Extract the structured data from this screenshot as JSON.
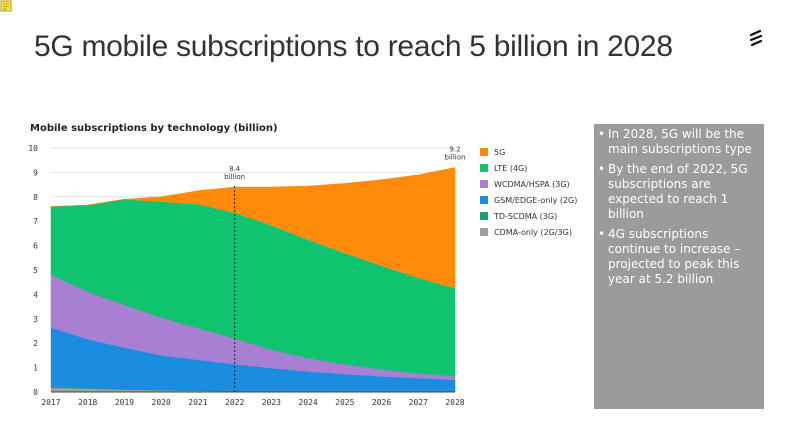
{
  "slide": {
    "title": "5G mobile subscriptions to reach 5 billion in 2028",
    "logo_icon": "ericsson-logo-icon",
    "note_icon": "note-icon"
  },
  "chart_data": {
    "type": "area",
    "title": "Mobile subscriptions by technology (billion)",
    "x": [
      "2017",
      "2018",
      "2019",
      "2020",
      "2021",
      "2022",
      "2023",
      "2024",
      "2025",
      "2026",
      "2027",
      "2028"
    ],
    "ylim": [
      0,
      10
    ],
    "yticks": [
      0,
      1,
      2,
      3,
      4,
      5,
      6,
      7,
      8,
      9,
      10
    ],
    "series": [
      {
        "name": "CDMA-only (2G/3G)",
        "color": "#a0a0a0",
        "values": [
          0.18,
          0.14,
          0.1,
          0.07,
          0.05,
          0.03,
          0.02,
          0.01,
          0.01,
          0.01,
          0.01,
          0.01
        ]
      },
      {
        "name": "TD-SCDMA (3G)",
        "color": "#19a16b",
        "values": [
          0.02,
          0.02,
          0.02,
          0.01,
          0.01,
          0.01,
          0.01,
          0.01,
          0.01,
          0.01,
          0.01,
          0.01
        ]
      },
      {
        "name": "GSM/EDGE-only (2G)",
        "color": "#1a8de0",
        "values": [
          2.45,
          2.0,
          1.7,
          1.42,
          1.26,
          1.1,
          0.95,
          0.82,
          0.72,
          0.62,
          0.55,
          0.48
        ]
      },
      {
        "name": "WCDMA/HSPA (3G)",
        "color": "#a77fd3",
        "values": [
          2.15,
          1.95,
          1.75,
          1.55,
          1.3,
          1.05,
          0.75,
          0.55,
          0.4,
          0.28,
          0.2,
          0.15
        ]
      },
      {
        "name": "LTE (4G)",
        "color": "#10c46f",
        "values": [
          2.8,
          3.55,
          4.33,
          4.75,
          5.08,
          5.15,
          5.1,
          4.85,
          4.55,
          4.25,
          3.9,
          3.6
        ]
      },
      {
        "name": "5G",
        "color": "#ff8a0c",
        "values": [
          0,
          0,
          0,
          0.2,
          0.55,
          1.06,
          1.57,
          2.2,
          2.86,
          3.53,
          4.23,
          4.95
        ]
      }
    ],
    "annotations": [
      {
        "x": "2022",
        "value": "8.4",
        "unit": "billion"
      },
      {
        "x": "2028",
        "value": "9.2",
        "unit": "billion"
      }
    ],
    "legend": {
      "placement": "right",
      "items": [
        {
          "label": "5G",
          "color": "#ff8a0c"
        },
        {
          "label": "LTE (4G)",
          "color": "#10c46f"
        },
        {
          "label": "WCDMA/HSPA (3G)",
          "color": "#a77fd3"
        },
        {
          "label": "GSM/EDGE-only (2G)",
          "color": "#1a8de0"
        },
        {
          "label": "TD-SCDMA (3G)",
          "color": "#19a16b"
        },
        {
          "label": "CDMA-only (2G/3G)",
          "color": "#a0a0a0"
        }
      ]
    },
    "grid": true
  },
  "bullets": [
    {
      "symbol": "•",
      "text": "In 2028, 5G will be the main subscriptions type"
    },
    {
      "symbol": "•",
      "text": "By the end of 2022, 5G subscriptions are expected to reach 1 billion"
    },
    {
      "symbol": "•",
      "text": "4G subscriptions continue to increase – projected to peak this year at 5.2 billion"
    }
  ]
}
